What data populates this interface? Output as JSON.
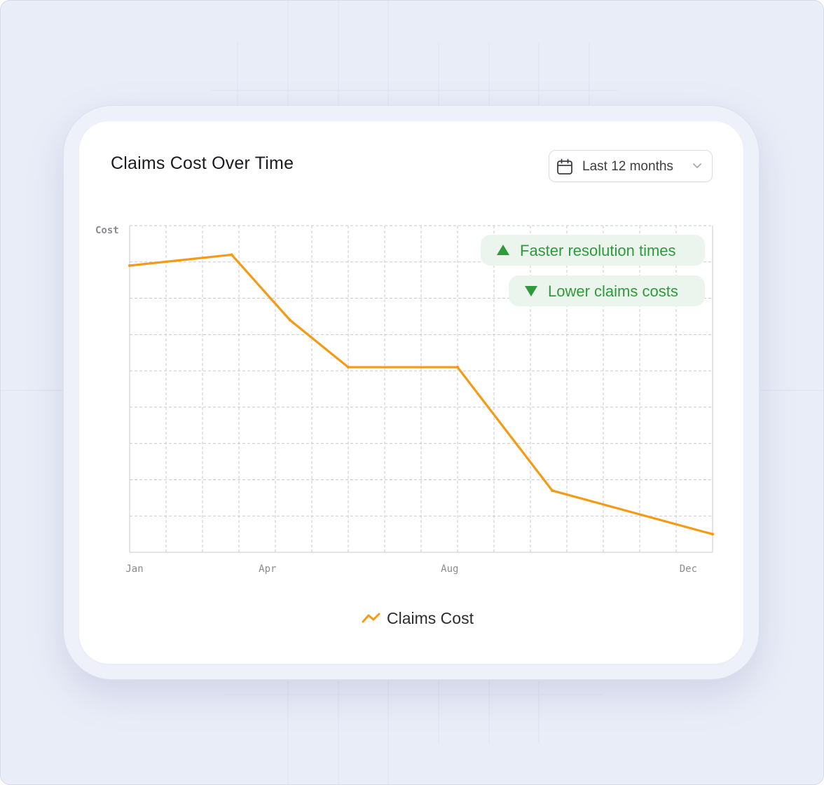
{
  "card": {
    "title": "Claims Cost Over Time"
  },
  "range_select": {
    "value": "Last 12 months",
    "icon": "calendar-icon",
    "chevron": "chevron-down-icon"
  },
  "badges": [
    {
      "label": "Faster resolution times",
      "icon": "triangle-up-icon",
      "color": "#2f9a3c",
      "bg": "#ebf5ee"
    },
    {
      "label": "Lower claims costs",
      "icon": "triangle-down-icon",
      "color": "#2f9a3c",
      "bg": "#ebf5ee"
    }
  ],
  "colors": {
    "line": "#f59a12",
    "grid": "#c9c9cf",
    "axis_text": "#8a8b90"
  },
  "chart_data": {
    "type": "line",
    "title": "Claims Cost Over Time",
    "xlabel": "",
    "ylabel": "Cost",
    "x_ticks": [
      "Jan",
      "",
      "",
      "Apr",
      "",
      "",
      "",
      "Aug",
      "",
      "",
      "",
      "Dec"
    ],
    "x_range": [
      0,
      16
    ],
    "ylim": [
      0,
      9
    ],
    "grid": true,
    "legend_position": "bottom-center",
    "series": [
      {
        "name": "Claims Cost",
        "color": "#f59a12",
        "x": [
          0,
          2.8,
          4.4,
          6.0,
          9.0,
          11.6,
          16.0
        ],
        "y": [
          7.9,
          8.2,
          6.4,
          5.1,
          5.1,
          1.7,
          0.5
        ]
      }
    ]
  }
}
